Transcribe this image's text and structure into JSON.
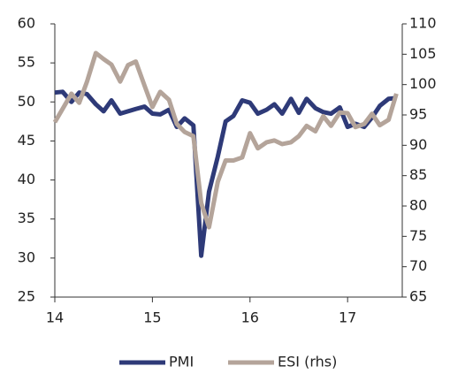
{
  "chart_data": {
    "type": "line",
    "x": [
      14,
      14.08,
      14.17,
      14.25,
      14.33,
      14.42,
      14.5,
      14.58,
      14.67,
      14.75,
      14.83,
      14.92,
      15,
      15.08,
      15.17,
      15.25,
      15.33,
      15.42,
      15.5,
      15.58,
      15.67,
      15.75,
      15.83,
      15.92,
      16,
      16.08,
      16.17,
      16.25,
      16.33,
      16.42,
      16.5,
      16.58,
      16.67,
      16.75,
      16.83,
      16.92,
      17,
      17.08,
      17.17,
      17.25,
      17.33,
      17.42,
      17.5
    ],
    "series": [
      {
        "name": "PMI",
        "color": "#2e3a78",
        "values": [
          51.2,
          51.3,
          50.0,
          51.2,
          51.0,
          49.7,
          48.8,
          50.2,
          48.5,
          48.8,
          49.1,
          49.4,
          48.5,
          48.4,
          49.0,
          46.8,
          47.9,
          47.0,
          30.3,
          38.5,
          43.0,
          47.5,
          48.2,
          50.2,
          49.9,
          48.5,
          49.0,
          49.7,
          48.5,
          50.4,
          48.6,
          50.4,
          49.2,
          48.7,
          48.5,
          49.3,
          46.8,
          47.2,
          46.8,
          48.0,
          49.5,
          50.4,
          50.5
        ]
      },
      {
        "name": "ESI (rhs)",
        "color": "#b4a49a",
        "axis": "y2",
        "values": [
          93.8,
          96.0,
          98.5,
          97.0,
          100.5,
          105.2,
          104.2,
          103.3,
          100.5,
          103.2,
          103.8,
          99.8,
          96.3,
          98.8,
          97.5,
          93.5,
          92.2,
          91.5,
          80.5,
          76.5,
          84.0,
          87.5,
          87.5,
          88.0,
          92.0,
          89.5,
          90.5,
          90.8,
          90.2,
          90.5,
          91.5,
          93.2,
          92.3,
          94.8,
          93.2,
          95.4,
          95.3,
          93.0,
          93.5,
          95.2,
          93.3,
          94.2,
          98.5
        ]
      }
    ],
    "xlim": [
      14,
      17.56
    ],
    "xticks": [
      14,
      15,
      16,
      17
    ],
    "ylim": [
      25,
      60
    ],
    "yticks": [
      25,
      30,
      35,
      40,
      45,
      50,
      55,
      60
    ],
    "y2lim": [
      65,
      110
    ],
    "y2ticks": [
      65,
      70,
      75,
      80,
      85,
      90,
      95,
      100,
      105,
      110
    ],
    "legend": "bottom"
  }
}
